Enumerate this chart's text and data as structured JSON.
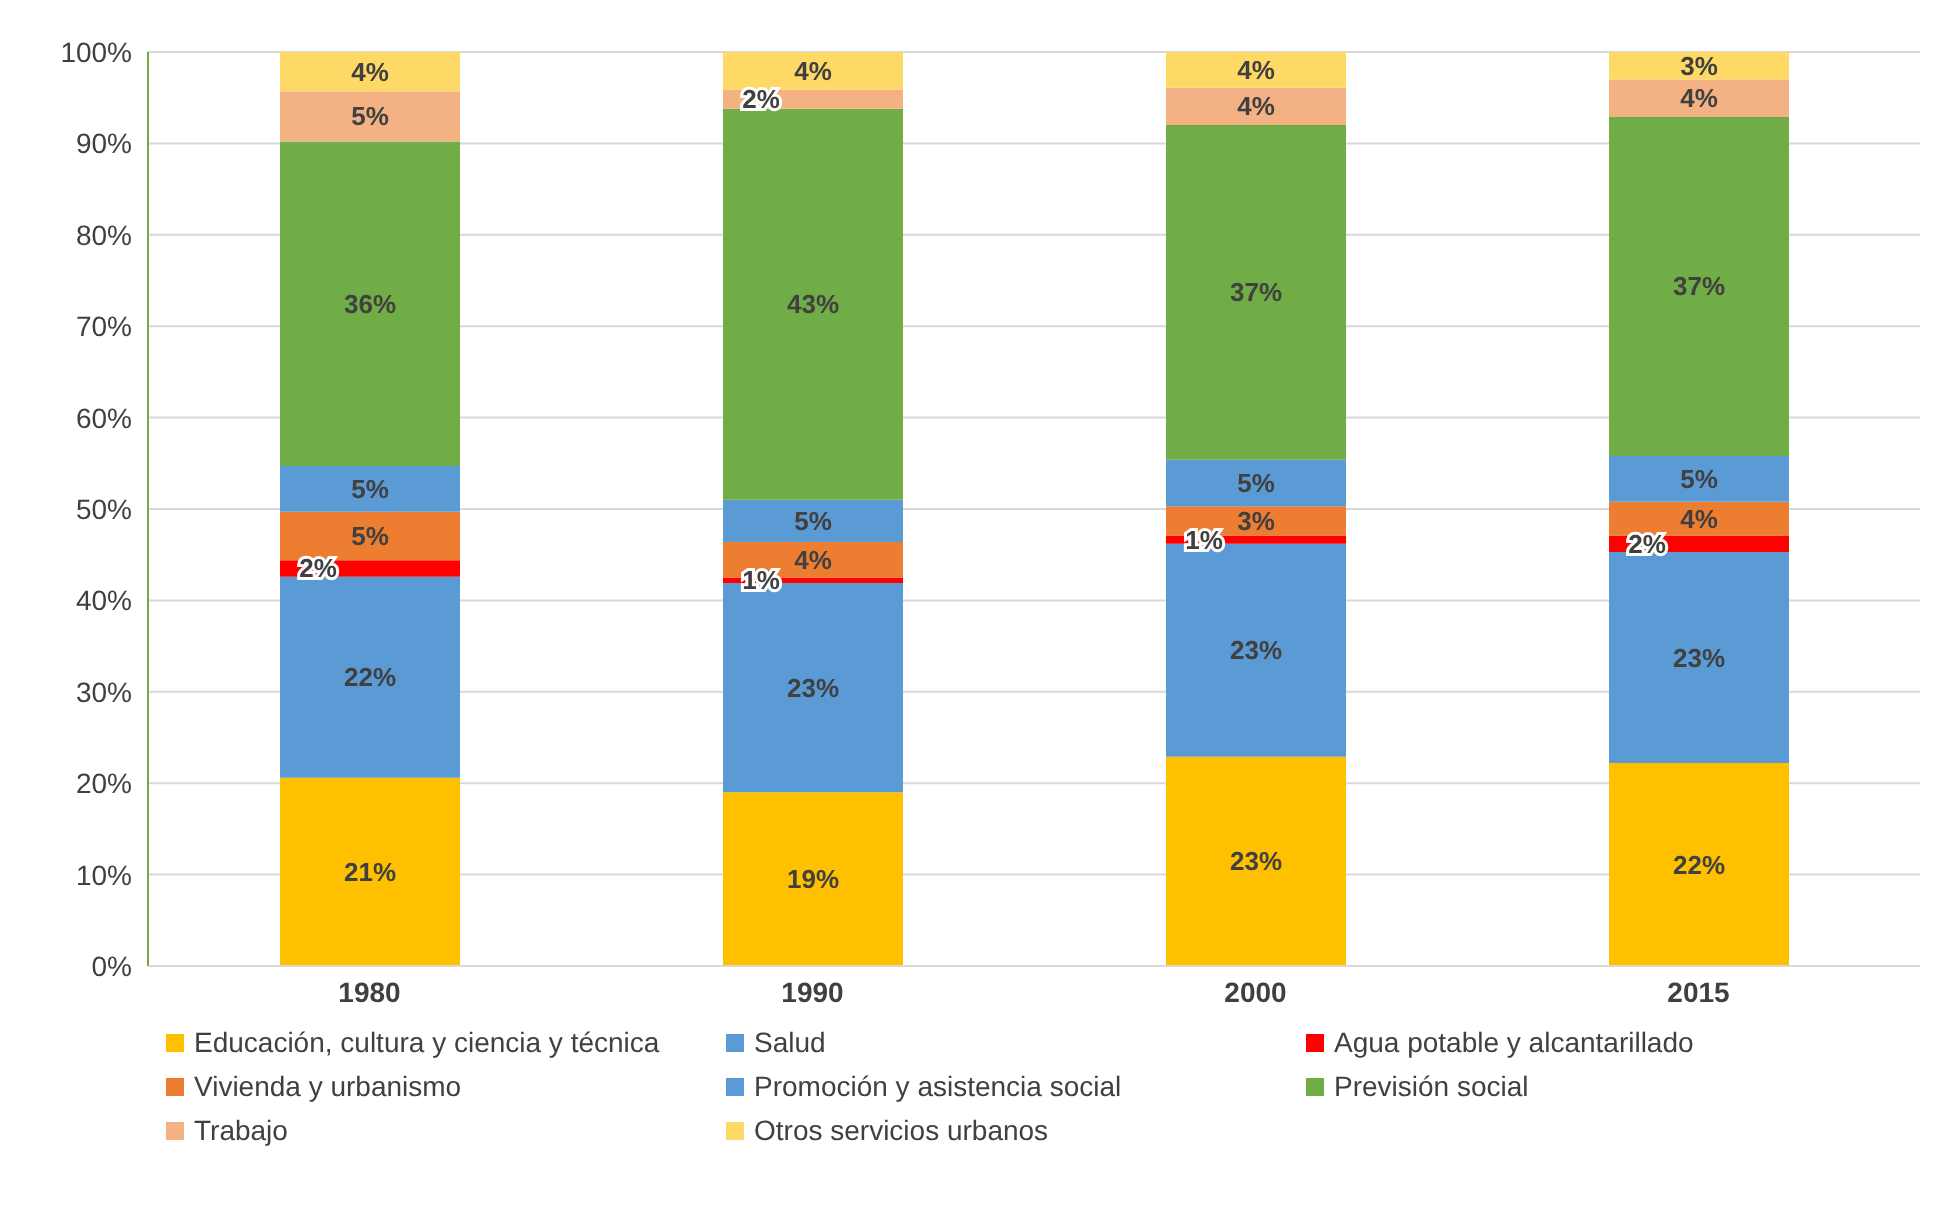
{
  "chart_data": {
    "type": "bar",
    "stacked": true,
    "categories": [
      "1980",
      "1990",
      "2000",
      "2015"
    ],
    "series": [
      {
        "name": "Educación, cultura y ciencia y técnica",
        "color": "#ffc000",
        "values": [
          20.6,
          19.0,
          22.9,
          22.2
        ],
        "value_labels": [
          "21%",
          "19%",
          "23%",
          "22%"
        ]
      },
      {
        "name": "Salud",
        "color": "#5b9bd5",
        "values": [
          22.0,
          22.9,
          23.3,
          23.1
        ],
        "value_labels": [
          "22%",
          "23%",
          "23%",
          "23%"
        ]
      },
      {
        "name": "Agua potable y alcantarillado",
        "color": "#ff0000",
        "values": [
          1.8,
          0.6,
          0.9,
          1.8
        ],
        "value_labels": [
          "2%",
          "1%",
          "1%",
          "2%"
        ]
      },
      {
        "name": "Vivienda y urbanismo",
        "color": "#ed7d31",
        "values": [
          5.3,
          3.9,
          3.2,
          3.7
        ],
        "value_labels": [
          "5%",
          "4%",
          "3%",
          "4%"
        ]
      },
      {
        "name": "Promoción y asistencia social",
        "color": "#5b9bd5",
        "values": [
          5.0,
          4.6,
          5.1,
          5.0
        ],
        "value_labels": [
          "5%",
          "5%",
          "5%",
          "5%"
        ]
      },
      {
        "name": "Previsión social",
        "color": "#70ad47",
        "values": [
          35.5,
          42.8,
          36.6,
          37.1
        ],
        "value_labels": [
          "36%",
          "43%",
          "37%",
          "37%"
        ]
      },
      {
        "name": "Trabajo",
        "color": "#f4b183",
        "values": [
          5.5,
          2.1,
          4.1,
          4.1
        ],
        "value_labels": [
          "5%",
          "2%",
          "4%",
          "4%"
        ]
      },
      {
        "name": "Otros servicios urbanos",
        "color": "#ffd966",
        "values": [
          4.3,
          4.1,
          3.9,
          3.0
        ],
        "value_labels": [
          "4%",
          "4%",
          "4%",
          "3%"
        ]
      }
    ],
    "ylim": [
      0,
      100
    ],
    "yticks": [
      {
        "value": 0,
        "label": "0%"
      },
      {
        "value": 10,
        "label": "10%"
      },
      {
        "value": 20,
        "label": "20%"
      },
      {
        "value": 30,
        "label": "30%"
      },
      {
        "value": 40,
        "label": "40%"
      },
      {
        "value": 50,
        "label": "50%"
      },
      {
        "value": 60,
        "label": "60%"
      },
      {
        "value": 70,
        "label": "70%"
      },
      {
        "value": 80,
        "label": "80%"
      },
      {
        "value": 90,
        "label": "90%"
      },
      {
        "value": 100,
        "label": "100%"
      }
    ],
    "grid": "y",
    "legend": "bottom"
  }
}
